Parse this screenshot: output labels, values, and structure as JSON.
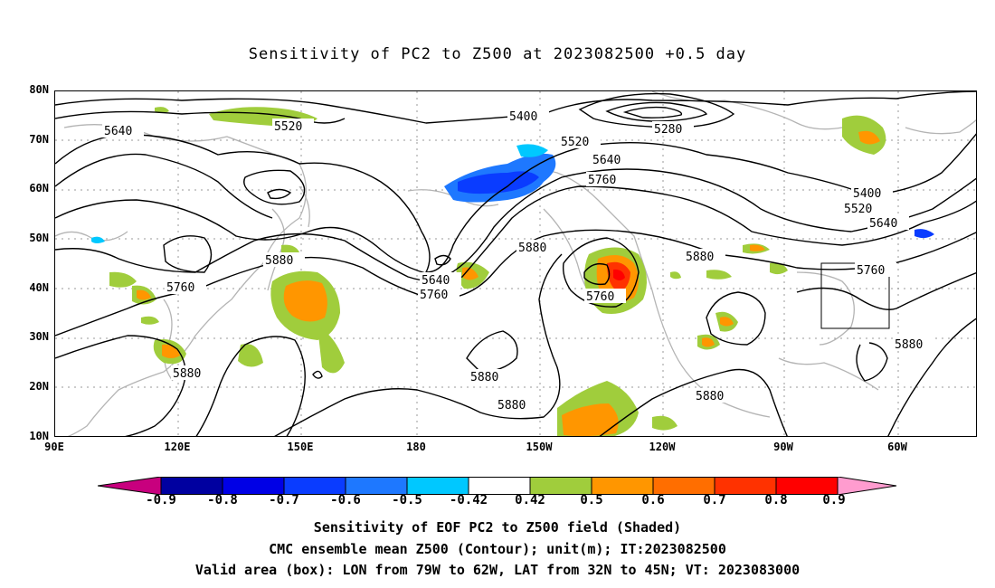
{
  "title": "Sensitivity of PC2 to Z500 at 2023082500 +0.5 day",
  "lat_labels": [
    "80N",
    "70N",
    "60N",
    "50N",
    "40N",
    "30N",
    "20N",
    "10N"
  ],
  "lon_labels": [
    "90E",
    "120E",
    "150E",
    "180",
    "150W",
    "120W",
    "90W",
    "60W"
  ],
  "contour_labels": [
    "5640",
    "5520",
    "5400",
    "5520",
    "5280",
    "5640",
    "5760",
    "5880",
    "5880",
    "5640",
    "5760",
    "5760",
    "5880",
    "5880",
    "5880",
    "5880",
    "5880",
    "5400",
    "5520",
    "5640",
    "5760",
    "5880"
  ],
  "colorbar": {
    "labels": [
      "-0.9",
      "-0.8",
      "-0.7",
      "-0.6",
      "-0.5",
      "-0.42",
      "0.42",
      "0.5",
      "0.6",
      "0.7",
      "0.8",
      "0.9"
    ],
    "colors": [
      "#c8007e",
      "#0000a0",
      "#0000e6",
      "#0a3cff",
      "#1e78ff",
      "#00c8ff",
      "#ffffff",
      "#a0cd3c",
      "#ff9600",
      "#ff6e00",
      "#ff3200",
      "#ff0000",
      "#ff9ccf"
    ]
  },
  "caption": {
    "line1": "Sensitivity of EOF PC2 to Z500 field (Shaded)",
    "line2": "CMC ensemble mean Z500 (Contour); unit(m); IT:2023082500",
    "line3": "Valid area (box): LON from 79W to 62W, LAT from 32N to 45N; VT: 2023083000"
  }
}
